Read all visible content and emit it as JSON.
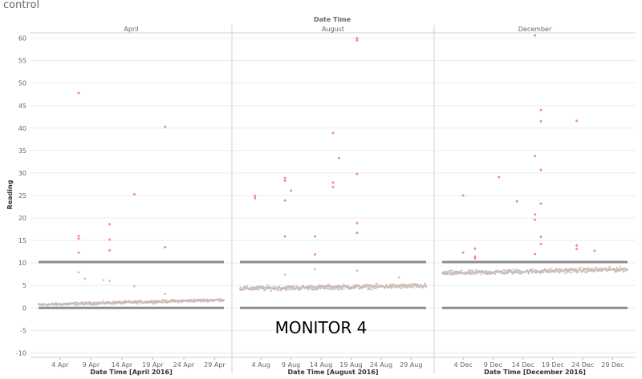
{
  "page": {
    "title": "control"
  },
  "colors": {
    "normal": "#c9bcb6",
    "anomaly": "#f08a9b",
    "threshold": "#8c8c8c",
    "divider": "#d0d0d0",
    "grid": "#ebebeb"
  },
  "chart_data": {
    "type": "scatter",
    "title": "Date Time",
    "ylabel": "Reading",
    "ylim": [
      -11,
      61
    ],
    "yticks": [
      -10,
      -5,
      0,
      5,
      10,
      15,
      20,
      25,
      30,
      35,
      40,
      45,
      50,
      55,
      60
    ],
    "reference_lines": [
      0,
      10.2
    ],
    "overlay_label": "MONITOR 4",
    "panels": [
      {
        "header": "April",
        "xlabel": "Date Time [April 2016]",
        "xlim": [
          "2016-04-01",
          "2016-04-30"
        ],
        "x_ticks": [
          {
            "date": "2016-04-04",
            "label": "4 Apr"
          },
          {
            "date": "2016-04-09",
            "label": "9 Apr"
          },
          {
            "date": "2016-04-14",
            "label": "14 Apr"
          },
          {
            "date": "2016-04-19",
            "label": "19 Apr"
          },
          {
            "date": "2016-04-24",
            "label": "24 Apr"
          },
          {
            "date": "2016-04-29",
            "label": "29 Apr"
          }
        ],
        "baseline": {
          "start": 0.7,
          "end": 1.8,
          "spread": 0.5
        },
        "anomalies": [
          {
            "date": "2016-04-07",
            "value": 47.8
          },
          {
            "date": "2016-04-07",
            "value": 16.0
          },
          {
            "date": "2016-04-07",
            "value": 15.4
          },
          {
            "date": "2016-04-07",
            "value": 12.3
          },
          {
            "date": "2016-04-12",
            "value": 18.6
          },
          {
            "date": "2016-04-12",
            "value": 15.2
          },
          {
            "date": "2016-04-12",
            "value": 12.8
          },
          {
            "date": "2016-04-16",
            "value": 25.3
          },
          {
            "date": "2016-04-21",
            "value": 40.3
          },
          {
            "date": "2016-04-21",
            "value": 13.5
          }
        ],
        "outliers": [
          {
            "date": "2016-04-07",
            "value": 7.9
          },
          {
            "date": "2016-04-08",
            "value": 6.5
          },
          {
            "date": "2016-04-11",
            "value": 6.2
          },
          {
            "date": "2016-04-12",
            "value": 6.0
          },
          {
            "date": "2016-04-16",
            "value": 4.8
          },
          {
            "date": "2016-04-21",
            "value": 3.1
          }
        ]
      },
      {
        "header": "August",
        "xlabel": "Date Time [August 2016]",
        "xlim": [
          "2016-08-01",
          "2016-08-31"
        ],
        "x_ticks": [
          {
            "date": "2016-08-04",
            "label": "4 Aug"
          },
          {
            "date": "2016-08-09",
            "label": "9 Aug"
          },
          {
            "date": "2016-08-14",
            "label": "14 Aug"
          },
          {
            "date": "2016-08-19",
            "label": "19 Aug"
          },
          {
            "date": "2016-08-24",
            "label": "24 Aug"
          },
          {
            "date": "2016-08-29",
            "label": "29 Aug"
          }
        ],
        "baseline": {
          "start": 4.3,
          "end": 4.9,
          "spread": 0.8
        },
        "anomalies": [
          {
            "date": "2016-08-03",
            "value": 24.9
          },
          {
            "date": "2016-08-03",
            "value": 24.4
          },
          {
            "date": "2016-08-08",
            "value": 28.9
          },
          {
            "date": "2016-08-08",
            "value": 28.3
          },
          {
            "date": "2016-08-09",
            "value": 26.1
          },
          {
            "date": "2016-08-08",
            "value": 23.9
          },
          {
            "date": "2016-08-08",
            "value": 15.9
          },
          {
            "date": "2016-08-13",
            "value": 15.9
          },
          {
            "date": "2016-08-13",
            "value": 11.9
          },
          {
            "date": "2016-08-16",
            "value": 38.9
          },
          {
            "date": "2016-08-16",
            "value": 27.9
          },
          {
            "date": "2016-08-16",
            "value": 26.9
          },
          {
            "date": "2016-08-17",
            "value": 33.3
          },
          {
            "date": "2016-08-20",
            "value": 60.0
          },
          {
            "date": "2016-08-20",
            "value": 59.5
          },
          {
            "date": "2016-08-20",
            "value": 29.8
          },
          {
            "date": "2016-08-20",
            "value": 18.9
          },
          {
            "date": "2016-08-20",
            "value": 16.7
          }
        ],
        "outliers": [
          {
            "date": "2016-08-08",
            "value": 7.4
          },
          {
            "date": "2016-08-13",
            "value": 8.6
          },
          {
            "date": "2016-08-20",
            "value": 8.3
          },
          {
            "date": "2016-08-27",
            "value": 6.8
          }
        ]
      },
      {
        "header": "December",
        "xlabel": "Date Time [December 2016]",
        "xlim": [
          "2016-12-01",
          "2016-12-31"
        ],
        "x_ticks": [
          {
            "date": "2016-12-04",
            "label": "4 Dec"
          },
          {
            "date": "2016-12-09",
            "label": "9 Dec"
          },
          {
            "date": "2016-12-14",
            "label": "14 Dec"
          },
          {
            "date": "2016-12-19",
            "label": "19 Dec"
          },
          {
            "date": "2016-12-24",
            "label": "24 Dec"
          },
          {
            "date": "2016-12-29",
            "label": "29 Dec"
          }
        ],
        "baseline": {
          "start": 7.7,
          "end": 8.6,
          "spread": 0.8
        },
        "anomalies": [
          {
            "date": "2016-12-04",
            "value": 25.0
          },
          {
            "date": "2016-12-04",
            "value": 12.3
          },
          {
            "date": "2016-12-06",
            "value": 13.2
          },
          {
            "date": "2016-12-06",
            "value": 11.4
          },
          {
            "date": "2016-12-06",
            "value": 11.0
          },
          {
            "date": "2016-12-10",
            "value": 29.1
          },
          {
            "date": "2016-12-13",
            "value": 23.7
          },
          {
            "date": "2016-12-16",
            "value": 60.6
          },
          {
            "date": "2016-12-17",
            "value": 44.0
          },
          {
            "date": "2016-12-17",
            "value": 41.5
          },
          {
            "date": "2016-12-16",
            "value": 33.8
          },
          {
            "date": "2016-12-17",
            "value": 30.7
          },
          {
            "date": "2016-12-17",
            "value": 23.2
          },
          {
            "date": "2016-12-16",
            "value": 20.8
          },
          {
            "date": "2016-12-16",
            "value": 19.6
          },
          {
            "date": "2016-12-17",
            "value": 15.8
          },
          {
            "date": "2016-12-17",
            "value": 14.2
          },
          {
            "date": "2016-12-16",
            "value": 12.0
          },
          {
            "date": "2016-12-23",
            "value": 41.6
          },
          {
            "date": "2016-12-23",
            "value": 13.9
          },
          {
            "date": "2016-12-23",
            "value": 13.1
          },
          {
            "date": "2016-12-26",
            "value": 12.7
          }
        ],
        "outliers": []
      }
    ]
  }
}
